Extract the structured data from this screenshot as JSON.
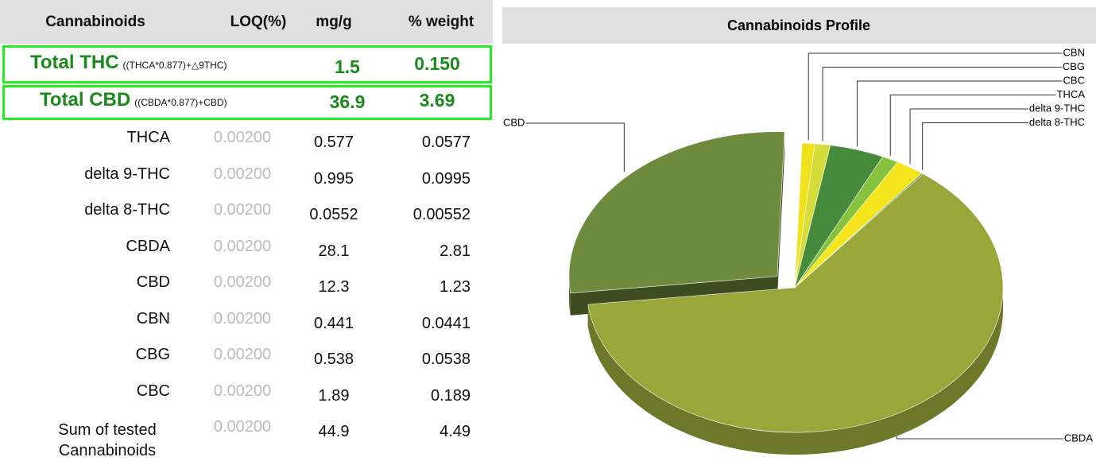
{
  "table": {
    "header": [
      "Cannabinoids",
      "LOQ(%)",
      "mg/g",
      "% weight"
    ],
    "totals": [
      {
        "name": "Total THC",
        "formula": "((THCA*0.877)+△9THC)",
        "mg": "1.5",
        "pct": "0.150"
      },
      {
        "name": "Total CBD",
        "formula": "((CBDA*0.877)+CBD)",
        "mg": "36.9",
        "pct": "3.69"
      }
    ],
    "rows": [
      [
        "THCA",
        "0.00200",
        "0.577",
        "0.0577"
      ],
      [
        "delta 9-THC",
        "0.00200",
        "0.995",
        "0.0995"
      ],
      [
        "delta 8-THC",
        "0.00200",
        "0.0552",
        "0.00552"
      ],
      [
        "CBDA",
        "0.00200",
        "28.1",
        "2.81"
      ],
      [
        "CBD",
        "0.00200",
        "12.3",
        "1.23"
      ],
      [
        "CBN",
        "0.00200",
        "0.441",
        "0.0441"
      ],
      [
        "CBG",
        "0.00200",
        "0.538",
        "0.0538"
      ],
      [
        "CBC",
        "0.00200",
        "1.89",
        "0.189"
      ],
      [
        "Sum of tested Cannabinoids",
        "0.00200",
        "44.9",
        "4.49"
      ]
    ]
  },
  "chart_data": {
    "type": "pie",
    "title": "Cannabinoids Profile",
    "categories": [
      "CBN",
      "CBG",
      "CBC",
      "THCA",
      "delta 9-THC",
      "delta 8-THC",
      "CBDA",
      "CBD"
    ],
    "values": [
      0.441,
      0.538,
      1.89,
      0.577,
      0.995,
      0.0552,
      28.1,
      12.3
    ],
    "colors": [
      "#f0e21a",
      "#d6dd3a",
      "#468a3c",
      "#86c23e",
      "#f4e51d",
      "#5a8a30",
      "#98a63a",
      "#6e8a3c"
    ],
    "exploded": "CBD"
  }
}
